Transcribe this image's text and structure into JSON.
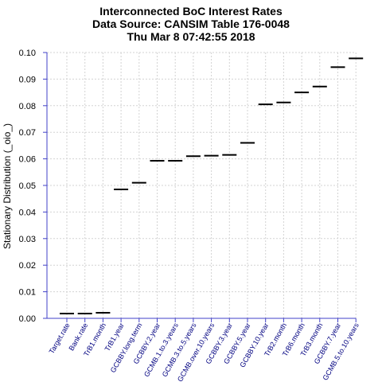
{
  "colors": {
    "axis": "#4040c8",
    "grid": "#d3d3d3",
    "tick_label_x": "#000080",
    "mark": "#000000"
  },
  "chart_data": {
    "type": "scatter",
    "title": [
      "Interconnected BoC Interest Rates",
      "Data Source: CANSIM Table 176-0048",
      "Thu Mar  8 07:42:55 2018"
    ],
    "ylabel": "Stationary Distribution (_oio_)",
    "xlabel": "",
    "ylim": [
      0,
      0.1
    ],
    "yticks": [
      "0.00",
      "0.01",
      "0.02",
      "0.03",
      "0.04",
      "0.05",
      "0.06",
      "0.07",
      "0.08",
      "0.09",
      "0.10"
    ],
    "ytick_values": [
      0,
      0.01,
      0.02,
      0.03,
      0.04,
      0.05,
      0.06,
      0.07,
      0.08,
      0.09,
      0.1
    ],
    "grid": true,
    "marker": "horizontal dash",
    "categories": [
      "Target.rate",
      "Bank.rate",
      "TrB1.month",
      "TrB1.year",
      "GCBBY.long.term",
      "GCBBY.2.year",
      "GCMB.1.to.3.years",
      "GCMB.3.to.5.years",
      "GCMB.over.10.years",
      "GCBBY.3.year",
      "GCBBY.5.year",
      "GCBBY.10.year",
      "TrB2.month",
      "TrB6.month",
      "TrB3.month",
      "GCBBY.7.year",
      "GCMB.5.to.10.years"
    ],
    "values": [
      0.0018,
      0.0018,
      0.0021,
      0.0485,
      0.051,
      0.0593,
      0.0593,
      0.061,
      0.0612,
      0.0615,
      0.066,
      0.0805,
      0.0812,
      0.085,
      0.0872,
      0.0945,
      0.0978
    ]
  }
}
